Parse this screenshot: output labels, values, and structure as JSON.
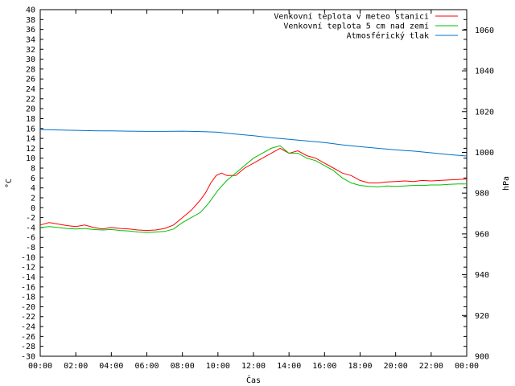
{
  "chart_data": {
    "type": "line",
    "xlabel": "Čas",
    "ylabel_left": "°C",
    "ylabel_right": "hPa",
    "x_ticks": [
      "00:00",
      "02:00",
      "04:00",
      "06:00",
      "08:00",
      "10:00",
      "12:00",
      "14:00",
      "16:00",
      "18:00",
      "20:00",
      "22:00",
      "00:00"
    ],
    "xlim": [
      0,
      24
    ],
    "ylim_left": [
      -30,
      40
    ],
    "yticks_left_step": 2,
    "ylim_right": [
      900,
      1070
    ],
    "yticks_right": [
      900,
      920,
      940,
      960,
      980,
      1000,
      1020,
      1040,
      1060
    ],
    "legend_placement": "top-right",
    "grid": false,
    "series": [
      {
        "name": "Venkovní teplota v meteo stanici",
        "axis": "left",
        "color": "#ff0000",
        "x": [
          0,
          0.5,
          1,
          1.5,
          2,
          2.5,
          3,
          3.5,
          4,
          4.5,
          5,
          5.5,
          6,
          6.5,
          7,
          7.5,
          8,
          8.5,
          9,
          9.3,
          9.6,
          9.9,
          10.2,
          10.5,
          11,
          11.5,
          12,
          12.5,
          13,
          13.5,
          14,
          14.5,
          15,
          15.5,
          16,
          16.5,
          17,
          17.5,
          18,
          18.5,
          19,
          19.5,
          20,
          20.5,
          21,
          21.5,
          22,
          22.5,
          23,
          23.5,
          24
        ],
        "y": [
          -3.5,
          -3,
          -3.3,
          -3.6,
          -3.8,
          -3.5,
          -4,
          -4.3,
          -4,
          -4.2,
          -4.3,
          -4.5,
          -4.6,
          -4.5,
          -4.2,
          -3.5,
          -2,
          -0.5,
          1.5,
          3,
          5,
          6.5,
          7,
          6.5,
          6.5,
          8,
          9,
          10,
          11,
          12,
          11,
          11.5,
          10.5,
          10,
          9,
          8,
          7,
          6.5,
          5.5,
          5,
          5,
          5.2,
          5.3,
          5.4,
          5.3,
          5.5,
          5.4,
          5.5,
          5.6,
          5.7,
          5.8
        ]
      },
      {
        "name": "Venkovní teplota 5 cm nad zemí",
        "axis": "left",
        "color": "#00c000",
        "x": [
          0,
          0.5,
          1,
          1.5,
          2,
          2.5,
          3,
          3.5,
          4,
          4.5,
          5,
          5.5,
          6,
          6.5,
          7,
          7.5,
          8,
          8.5,
          9,
          9.5,
          10,
          10.5,
          11,
          11.5,
          12,
          12.5,
          13,
          13.5,
          14,
          14.5,
          15,
          15.5,
          16,
          16.5,
          17,
          17.5,
          18,
          18.5,
          19,
          19.5,
          20,
          20.5,
          21,
          21.5,
          22,
          22.5,
          23,
          23.5,
          24
        ],
        "y": [
          -4,
          -3.8,
          -4,
          -4.2,
          -4.3,
          -4.2,
          -4.4,
          -4.5,
          -4.4,
          -4.6,
          -4.7,
          -4.9,
          -5,
          -4.9,
          -4.8,
          -4.3,
          -3,
          -2,
          -1,
          1,
          3.5,
          5.5,
          7,
          8.5,
          10,
          11,
          12,
          12.5,
          11,
          11,
          10,
          9.5,
          8.5,
          7.5,
          6,
          5,
          4.5,
          4.3,
          4.2,
          4.4,
          4.3,
          4.4,
          4.5,
          4.5,
          4.6,
          4.6,
          4.7,
          4.8,
          4.8
        ]
      },
      {
        "name": "Atmosférický tlak",
        "axis": "right",
        "color": "#0070c8",
        "x": [
          0,
          1,
          2,
          3,
          4,
          5,
          6,
          7,
          8,
          9,
          10,
          11,
          12,
          13,
          14,
          15,
          16,
          17,
          18,
          19,
          20,
          21,
          22,
          23,
          24
        ],
        "y": [
          1011.2,
          1011,
          1010.8,
          1010.6,
          1010.5,
          1010.4,
          1010.3,
          1010.3,
          1010.4,
          1010.2,
          1009.9,
          1009,
          1008.2,
          1007.2,
          1006.4,
          1005.6,
          1004.8,
          1003.7,
          1002.8,
          1002,
          1001.2,
          1000.6,
          999.8,
          998.9,
          998.2
        ]
      }
    ]
  }
}
